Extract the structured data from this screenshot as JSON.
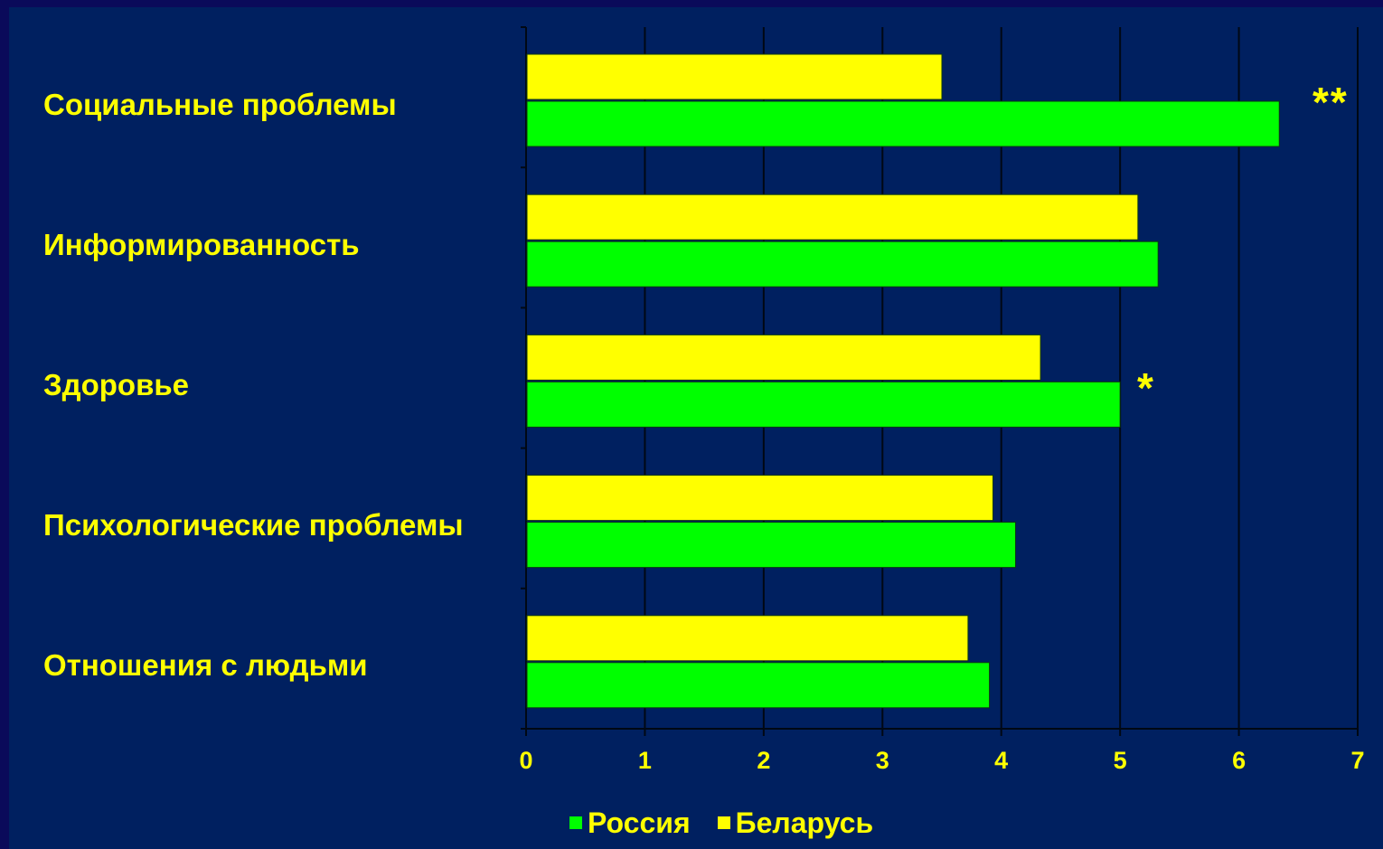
{
  "colors": {
    "background": "#002060",
    "russia": "#00ff00",
    "belarus": "#ffff00",
    "text": "#ffff00"
  },
  "legend": [
    {
      "name": "Россия",
      "color": "#00ff00"
    },
    {
      "name": "Беларусь",
      "color": "#ffff00"
    }
  ],
  "chart_data": {
    "type": "bar",
    "orientation": "horizontal",
    "categories": [
      "Социальные проблемы",
      "Информированность",
      "Здоровье",
      "Психологические проблемы",
      "Отношения с людьми"
    ],
    "series": [
      {
        "name": "Беларусь",
        "color": "#ffff00",
        "values": [
          3.5,
          5.15,
          4.33,
          3.93,
          3.72
        ]
      },
      {
        "name": "Россия",
        "color": "#00ff00",
        "values": [
          6.34,
          5.32,
          5.0,
          4.12,
          3.9
        ]
      }
    ],
    "xlim": [
      0,
      7
    ],
    "x_ticks": [
      "0",
      "1",
      "2",
      "3",
      "4",
      "5",
      "6",
      "7"
    ],
    "annotations": [
      "**",
      "*"
    ],
    "grid": true,
    "legend_position": "bottom"
  }
}
